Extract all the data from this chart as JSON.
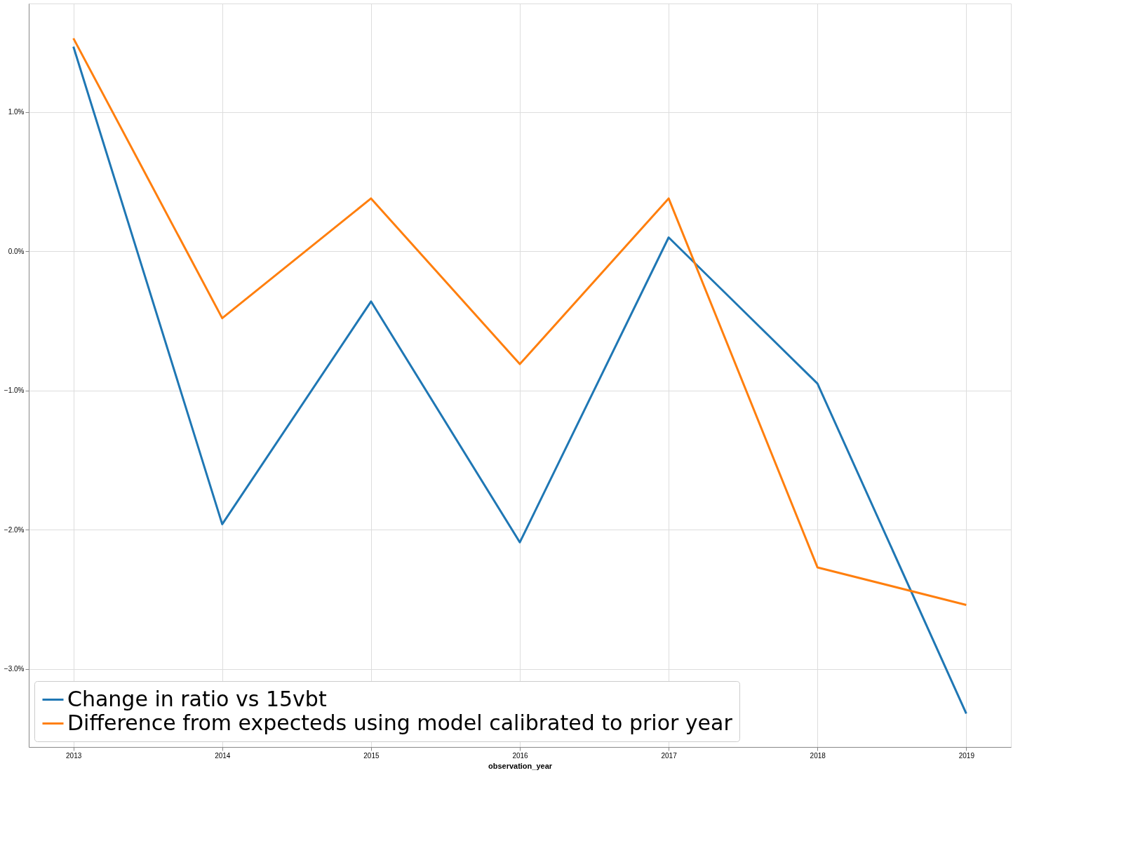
{
  "chart_data": {
    "type": "line",
    "xlabel": "observation_year",
    "x": [
      2013,
      2014,
      2015,
      2016,
      2017,
      2018,
      2019
    ],
    "series": [
      {
        "name": "Change in ratio vs 15vbt",
        "color": "#1f77b4",
        "values": [
          1.47,
          -1.96,
          -0.36,
          -2.09,
          0.1,
          -0.95,
          -3.32
        ]
      },
      {
        "name": "Difference from expecteds using model calibrated to prior year",
        "color": "#ff7f0e",
        "values": [
          1.53,
          -0.48,
          0.38,
          -0.81,
          0.38,
          -2.27,
          -2.54
        ]
      }
    ],
    "xlim": [
      2012.7,
      2019.3
    ],
    "xticks": [
      2013,
      2014,
      2015,
      2016,
      2017,
      2018,
      2019
    ],
    "ylim": [
      -3.56,
      1.78
    ],
    "yticks": [
      {
        "value": -3,
        "label": "−3.0%"
      },
      {
        "value": -2,
        "label": "−2.0%"
      },
      {
        "value": -1,
        "label": "−1.0%"
      },
      {
        "value": 0,
        "label": "0.0%"
      },
      {
        "value": 1,
        "label": "1.0%"
      }
    ],
    "grid": true,
    "legend": "bottom left",
    "line_style": "solid",
    "marker": "none"
  }
}
